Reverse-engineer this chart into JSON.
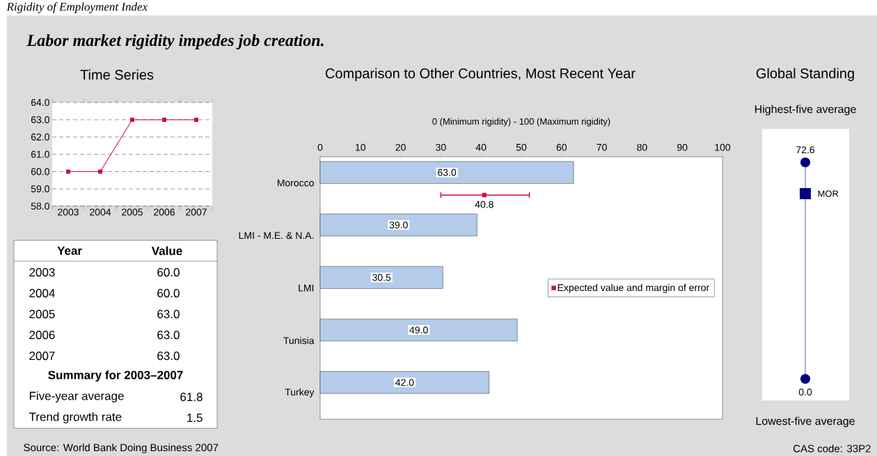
{
  "chart_data": [
    {
      "type": "other",
      "title": "Labor market rigidity impedes job creation.",
      "annotations": [
        "Rigidity of Employment Index",
        "Source: World Bank Doing Business 2007",
        "CAS code: 33P2"
      ]
    },
    {
      "type": "line",
      "title": "Time Series",
      "categories": [
        "2003",
        "2004",
        "2005",
        "2006",
        "2007"
      ],
      "values": [
        60,
        60,
        63,
        63,
        63
      ],
      "color": "#c8103e",
      "marker": "square",
      "line_style": "solid",
      "ylim": [
        58,
        64
      ],
      "yticks": [
        {
          "value": 58,
          "label": "58.0"
        },
        {
          "value": 59,
          "label": "59.0"
        },
        {
          "value": 60,
          "label": "60.0"
        },
        {
          "value": 61,
          "label": "61.0"
        },
        {
          "value": 62,
          "label": "62.0"
        },
        {
          "value": 63,
          "label": "63.0"
        },
        {
          "value": 64,
          "label": "64.0"
        }
      ],
      "grid": "y",
      "annotations": [
        "Year",
        "Value",
        "2003",
        "60.0",
        "2004",
        "60.0",
        "2005",
        "63.0",
        "2006",
        "63.0",
        "2007",
        "63.0"
      ]
    },
    {
      "type": "other",
      "title": "Summary for 2003–2007",
      "annotations": [
        "Five-year average",
        "61.8",
        "Trend growth rate",
        "1.5"
      ]
    },
    {
      "type": "bar",
      "orientation": "horizontal",
      "title": "Comparison to Other Countries, Most Recent Year",
      "xlabel": "0 (Minimum rigidity) - 100 (Maximum rigidity)",
      "categories": [
        "Morocco",
        "LMI - M.E. & N.A.",
        "LMI",
        "Tunisia",
        "Turkey"
      ],
      "xlim": [
        0,
        100
      ],
      "xticks": [
        0,
        10,
        20,
        30,
        40,
        50,
        60,
        70,
        80,
        90,
        100
      ],
      "legend": "right",
      "series": [
        {
          "color": "#b4cbea",
          "values": [
            63,
            39,
            30.5,
            49,
            42
          ],
          "value_labels": [
            "63.0",
            "39.0",
            "30.5",
            "49.0",
            "42.0"
          ]
        },
        {
          "type": "scatter",
          "name": "Expected value and margin of error",
          "color": "#c8103e",
          "marker": "square",
          "values": [
            40.8,
            null,
            null,
            null,
            null
          ],
          "errors": [
            [
              30,
              52
            ],
            null,
            null,
            null,
            null
          ],
          "value_labels": [
            "40.8",
            null,
            null,
            null,
            null
          ]
        }
      ]
    },
    {
      "type": "other",
      "title": "Global Standing",
      "annotations": [
        "Highest-five average",
        "72.6",
        "MOR",
        "0.0",
        "Lowest-five average"
      ]
    }
  ]
}
